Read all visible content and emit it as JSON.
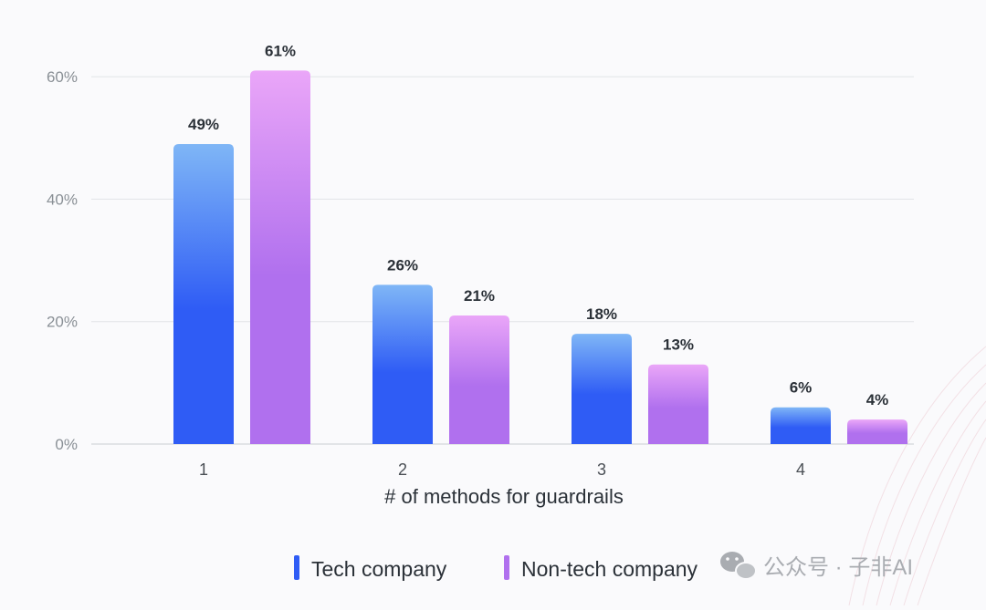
{
  "chart_data": {
    "type": "bar",
    "categories": [
      "1",
      "2",
      "3",
      "4"
    ],
    "series": [
      {
        "name": "Tech company",
        "values": [
          49,
          26,
          18,
          6
        ],
        "labels": [
          "49%",
          "26%",
          "18%",
          "6%"
        ],
        "color_top": "#7fb6f6",
        "color_bottom": "#2f5cf5"
      },
      {
        "name": "Non-tech company",
        "values": [
          61,
          21,
          13,
          4
        ],
        "labels": [
          "61%",
          "21%",
          "13%",
          "4%"
        ],
        "color_top": "#eaa6f8",
        "color_bottom": "#b070ee"
      }
    ],
    "yticks": [
      0,
      20,
      40,
      60
    ],
    "ytick_labels": [
      "0%",
      "20%",
      "40%",
      "60%"
    ],
    "ylim": [
      0,
      63
    ],
    "xlabel": "# of methods for guardrails",
    "ylabel": "",
    "grid": true,
    "legend_position": "bottom-center"
  },
  "watermark": {
    "text": "公众号 · 子非AI",
    "icon": "wechat-icon"
  }
}
